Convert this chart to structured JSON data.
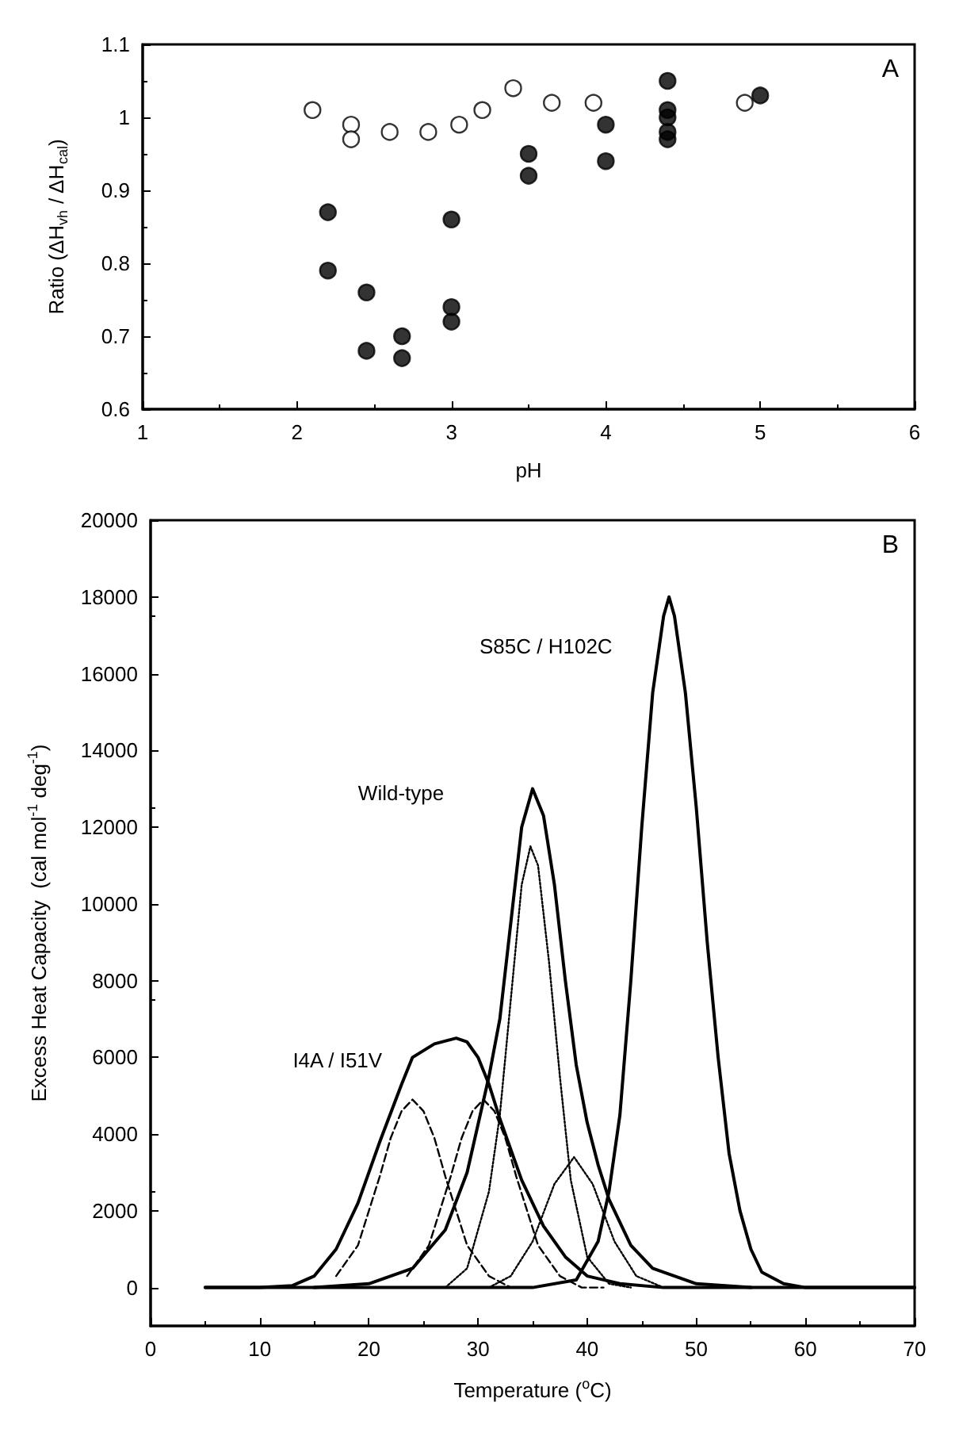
{
  "chart_data": [
    {
      "type": "scatter",
      "ylabel": "Ratio (ΔH$_{vh}$ / ΔH$_{cal}$)",
      "xlabel": "pH",
      "annotations": [
        "A"
      ],
      "xlim": [
        1,
        6
      ],
      "xticks": [
        1,
        2,
        3,
        4,
        5,
        6
      ],
      "ylim": [
        0.6,
        1.1
      ],
      "yticks": [
        0.6,
        0.7,
        0.8,
        0.9,
        1.0,
        1.1
      ],
      "grid": false,
      "marker": "circle",
      "series": [
        {
          "color": "#ffffff",
          "x": [
            2.1,
            2.35,
            2.35,
            2.6,
            2.85,
            3.05,
            3.2,
            3.4,
            3.65,
            3.92,
            4.9
          ],
          "values": [
            1.01,
            0.99,
            0.97,
            0.98,
            0.98,
            0.99,
            1.01,
            1.04,
            1.02,
            1.02,
            1.02
          ]
        },
        {
          "color": "#000000",
          "x": [
            2.2,
            2.2,
            2.45,
            2.45,
            2.68,
            2.68,
            3,
            3,
            3,
            3.5,
            3.5,
            4,
            4,
            4.4,
            4.4,
            4.4,
            4.4,
            4.4,
            5
          ],
          "values": [
            0.87,
            0.79,
            0.76,
            0.68,
            0.7,
            0.67,
            0.86,
            0.74,
            0.72,
            0.95,
            0.92,
            0.99,
            0.94,
            1.05,
            1.01,
            1.0,
            0.98,
            0.97,
            1.03
          ]
        }
      ]
    },
    {
      "type": "line",
      "ylabel": "Excess Heat Capacity  (cal mol$^{-1}$ deg$^{-1}$)",
      "xlabel": "Temperature ($^{o}$C)",
      "annotations": [
        "B",
        "S85C / H102C",
        "Wild-type",
        "I4A / I51V"
      ],
      "xlim": [
        0,
        70
      ],
      "xticks": [
        0,
        10,
        20,
        30,
        40,
        50,
        60,
        70
      ],
      "ylim": [
        -1000,
        20000
      ],
      "yticks": [
        0,
        2000,
        4000,
        6000,
        8000,
        10000,
        12000,
        14000,
        16000,
        18000,
        20000
      ],
      "grid": false,
      "marker": "none",
      "series": [
        {
          "color": "#000000",
          "line_style": "solid",
          "x": [
            5,
            10,
            13,
            15,
            17,
            19,
            21,
            23,
            24,
            26,
            28,
            29,
            30,
            31,
            32,
            34,
            36,
            38,
            40,
            43,
            47,
            55,
            70
          ],
          "values": [
            0,
            0,
            50,
            300,
            1000,
            2200,
            3800,
            5300,
            6000,
            6350,
            6500,
            6400,
            6000,
            5300,
            4400,
            2800,
            1600,
            800,
            300,
            100,
            0,
            0,
            0
          ]
        },
        {
          "color": "#000000",
          "line_style": "dashed",
          "x": [
            17,
            19,
            21,
            22,
            23,
            24,
            25,
            26,
            27,
            29,
            31,
            33,
            35
          ],
          "values": [
            300,
            1100,
            2900,
            3900,
            4600,
            4900,
            4600,
            3900,
            2900,
            1100,
            300,
            0,
            0
          ]
        },
        {
          "color": "#000000",
          "line_style": "dashed",
          "x": [
            23.5,
            25.5,
            27.5,
            28.5,
            29.5,
            30.5,
            31.5,
            32.5,
            33.5,
            35.5,
            37.5,
            39.5,
            41.5
          ],
          "values": [
            300,
            1100,
            2900,
            3900,
            4600,
            4900,
            4600,
            3900,
            2900,
            1100,
            300,
            0,
            0
          ]
        },
        {
          "color": "#000000",
          "line_style": "solid",
          "x": [
            15,
            20,
            24,
            27,
            29,
            31,
            32,
            33,
            34,
            35,
            36,
            37,
            38,
            39,
            40,
            41,
            42,
            44,
            46,
            50,
            55
          ],
          "values": [
            0,
            100,
            500,
            1500,
            3000,
            5500,
            7000,
            9500,
            12000,
            13000,
            12300,
            10500,
            8000,
            5800,
            4300,
            3200,
            2300,
            1100,
            500,
            100,
            0
          ]
        },
        {
          "color": "#000000",
          "line_style": "dotted",
          "x": [
            27,
            29,
            31,
            32,
            33,
            34,
            34.8,
            35.5,
            36.5,
            37.5,
            38.5,
            40,
            42,
            44
          ],
          "values": [
            0,
            500,
            2500,
            4500,
            7500,
            10500,
            11500,
            11000,
            8500,
            5500,
            2800,
            800,
            100,
            0
          ]
        },
        {
          "color": "#000000",
          "line_style": "dotted",
          "x": [
            31,
            33,
            35,
            37,
            38.8,
            40.5,
            42.5,
            44.5,
            47
          ],
          "values": [
            0,
            300,
            1200,
            2700,
            3400,
            2700,
            1200,
            300,
            0
          ]
        },
        {
          "color": "#000000",
          "line_style": "solid",
          "x": [
            5,
            35,
            39,
            41,
            42,
            43,
            44,
            45,
            46,
            47,
            47.5,
            48,
            49,
            50,
            51,
            52,
            53,
            54,
            55,
            56,
            58,
            60,
            70
          ],
          "values": [
            0,
            0,
            200,
            1200,
            2500,
            4500,
            8000,
            12000,
            15500,
            17500,
            18000,
            17500,
            15500,
            12500,
            9000,
            6000,
            3500,
            2000,
            1000,
            400,
            100,
            0,
            0
          ]
        }
      ]
    }
  ]
}
